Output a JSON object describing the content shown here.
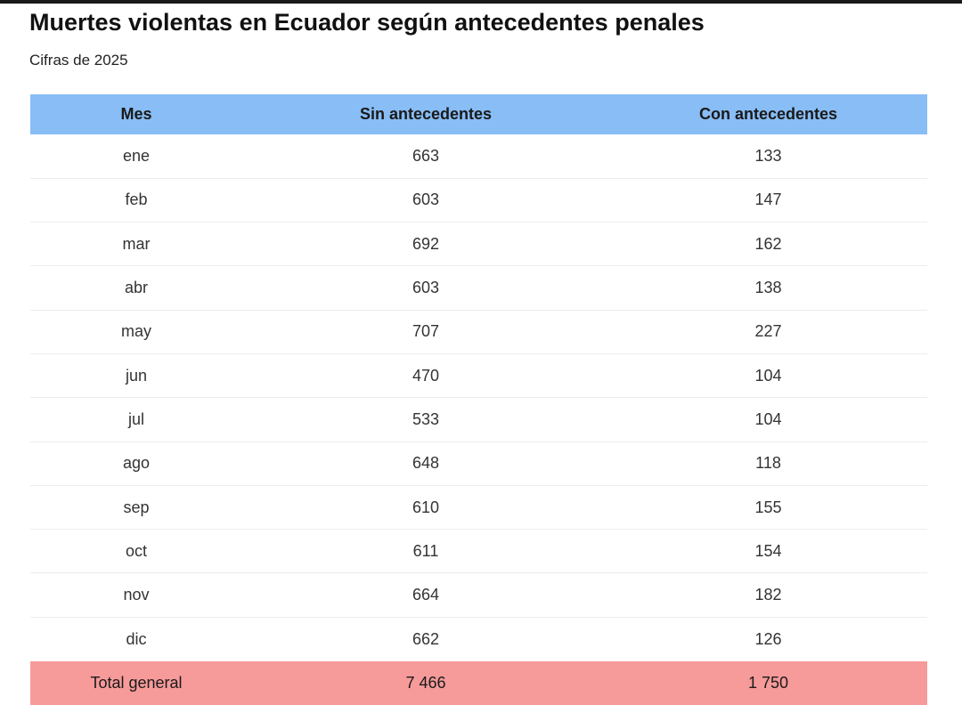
{
  "title": "Muertes violentas en Ecuador según antecedentes penales",
  "subtitle": "Cifras de 2025",
  "colors": {
    "header_bg": "#88bdf5",
    "total_bg": "#f79a9a"
  },
  "chart_data": {
    "type": "table",
    "columns": [
      "Mes",
      "Sin antecedentes",
      "Con antecedentes"
    ],
    "rows": [
      [
        "ene",
        "663",
        "133"
      ],
      [
        "feb",
        "603",
        "147"
      ],
      [
        "mar",
        "692",
        "162"
      ],
      [
        "abr",
        "603",
        "138"
      ],
      [
        "may",
        "707",
        "227"
      ],
      [
        "jun",
        "470",
        "104"
      ],
      [
        "jul",
        "533",
        "104"
      ],
      [
        "ago",
        "648",
        "118"
      ],
      [
        "sep",
        "610",
        "155"
      ],
      [
        "oct",
        "611",
        "154"
      ],
      [
        "nov",
        "664",
        "182"
      ],
      [
        "dic",
        "662",
        "126"
      ]
    ],
    "total": [
      "Total general",
      "7 466",
      "1 750"
    ]
  }
}
